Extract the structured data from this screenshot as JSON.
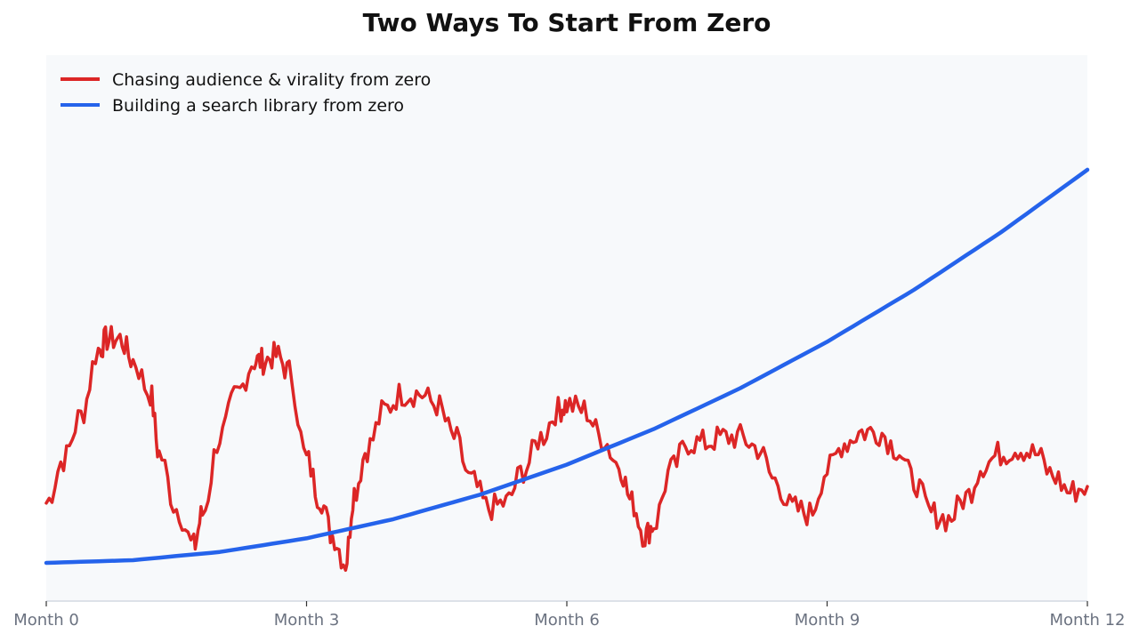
{
  "chart_data": {
    "type": "line",
    "title": "Two Ways To Start From Zero",
    "xlabel": "",
    "ylabel": "",
    "x_ticks": [
      "Month 0",
      "Month 3",
      "Month 6",
      "Month 9",
      "Month 12"
    ],
    "xlim": [
      0,
      12
    ],
    "ylim": [
      0,
      100
    ],
    "grid": false,
    "legend_position": "top-left",
    "series": [
      {
        "name": "Chasing audience & virality from zero",
        "color": "#dc2626",
        "shape": "oscillating",
        "x": [
          0,
          0.2,
          0.4,
          0.6,
          0.7,
          0.85,
          1.0,
          1.2,
          1.3,
          1.5,
          1.7,
          1.8,
          2.0,
          2.2,
          2.4,
          2.5,
          2.65,
          2.8,
          3.0,
          3.15,
          3.3,
          3.45,
          3.55,
          3.7,
          3.9,
          4.1,
          4.3,
          4.5,
          4.7,
          4.9,
          5.1,
          5.3,
          5.5,
          5.7,
          5.9,
          6.0,
          6.2,
          6.4,
          6.6,
          6.75,
          6.9,
          7.0,
          7.2,
          7.4,
          7.6,
          7.8,
          8.0,
          8.2,
          8.4,
          8.6,
          8.8,
          9.0,
          9.2,
          9.4,
          9.6,
          9.8,
          10.0,
          10.2,
          10.4,
          10.6,
          10.8,
          11.0,
          11.2,
          11.4,
          11.6,
          11.8,
          12.0
        ],
        "values": [
          18,
          26,
          34,
          46,
          48,
          48,
          44,
          38,
          27,
          17,
          10,
          16,
          30,
          38,
          44,
          44,
          45,
          42,
          26,
          19,
          12,
          7,
          20,
          28,
          35,
          38,
          38,
          36,
          30,
          22,
          17,
          18,
          24,
          30,
          35,
          36,
          35,
          30,
          25,
          18,
          12,
          14,
          24,
          29,
          29,
          30,
          30,
          28,
          22,
          17,
          16,
          24,
          29,
          31,
          31,
          28,
          22,
          16,
          15,
          19,
          25,
          27,
          28,
          27,
          23,
          20,
          21
        ]
      },
      {
        "name": "Building a search library from zero",
        "color": "#2563eb",
        "shape": "quadratic",
        "x": [
          0,
          1,
          2,
          3,
          4,
          5,
          6,
          7,
          8,
          9,
          10,
          11,
          12
        ],
        "values": [
          7,
          7.5,
          9,
          11.5,
          15,
          19.5,
          25,
          31.5,
          39,
          47.5,
          57,
          67.5,
          79
        ]
      }
    ]
  }
}
